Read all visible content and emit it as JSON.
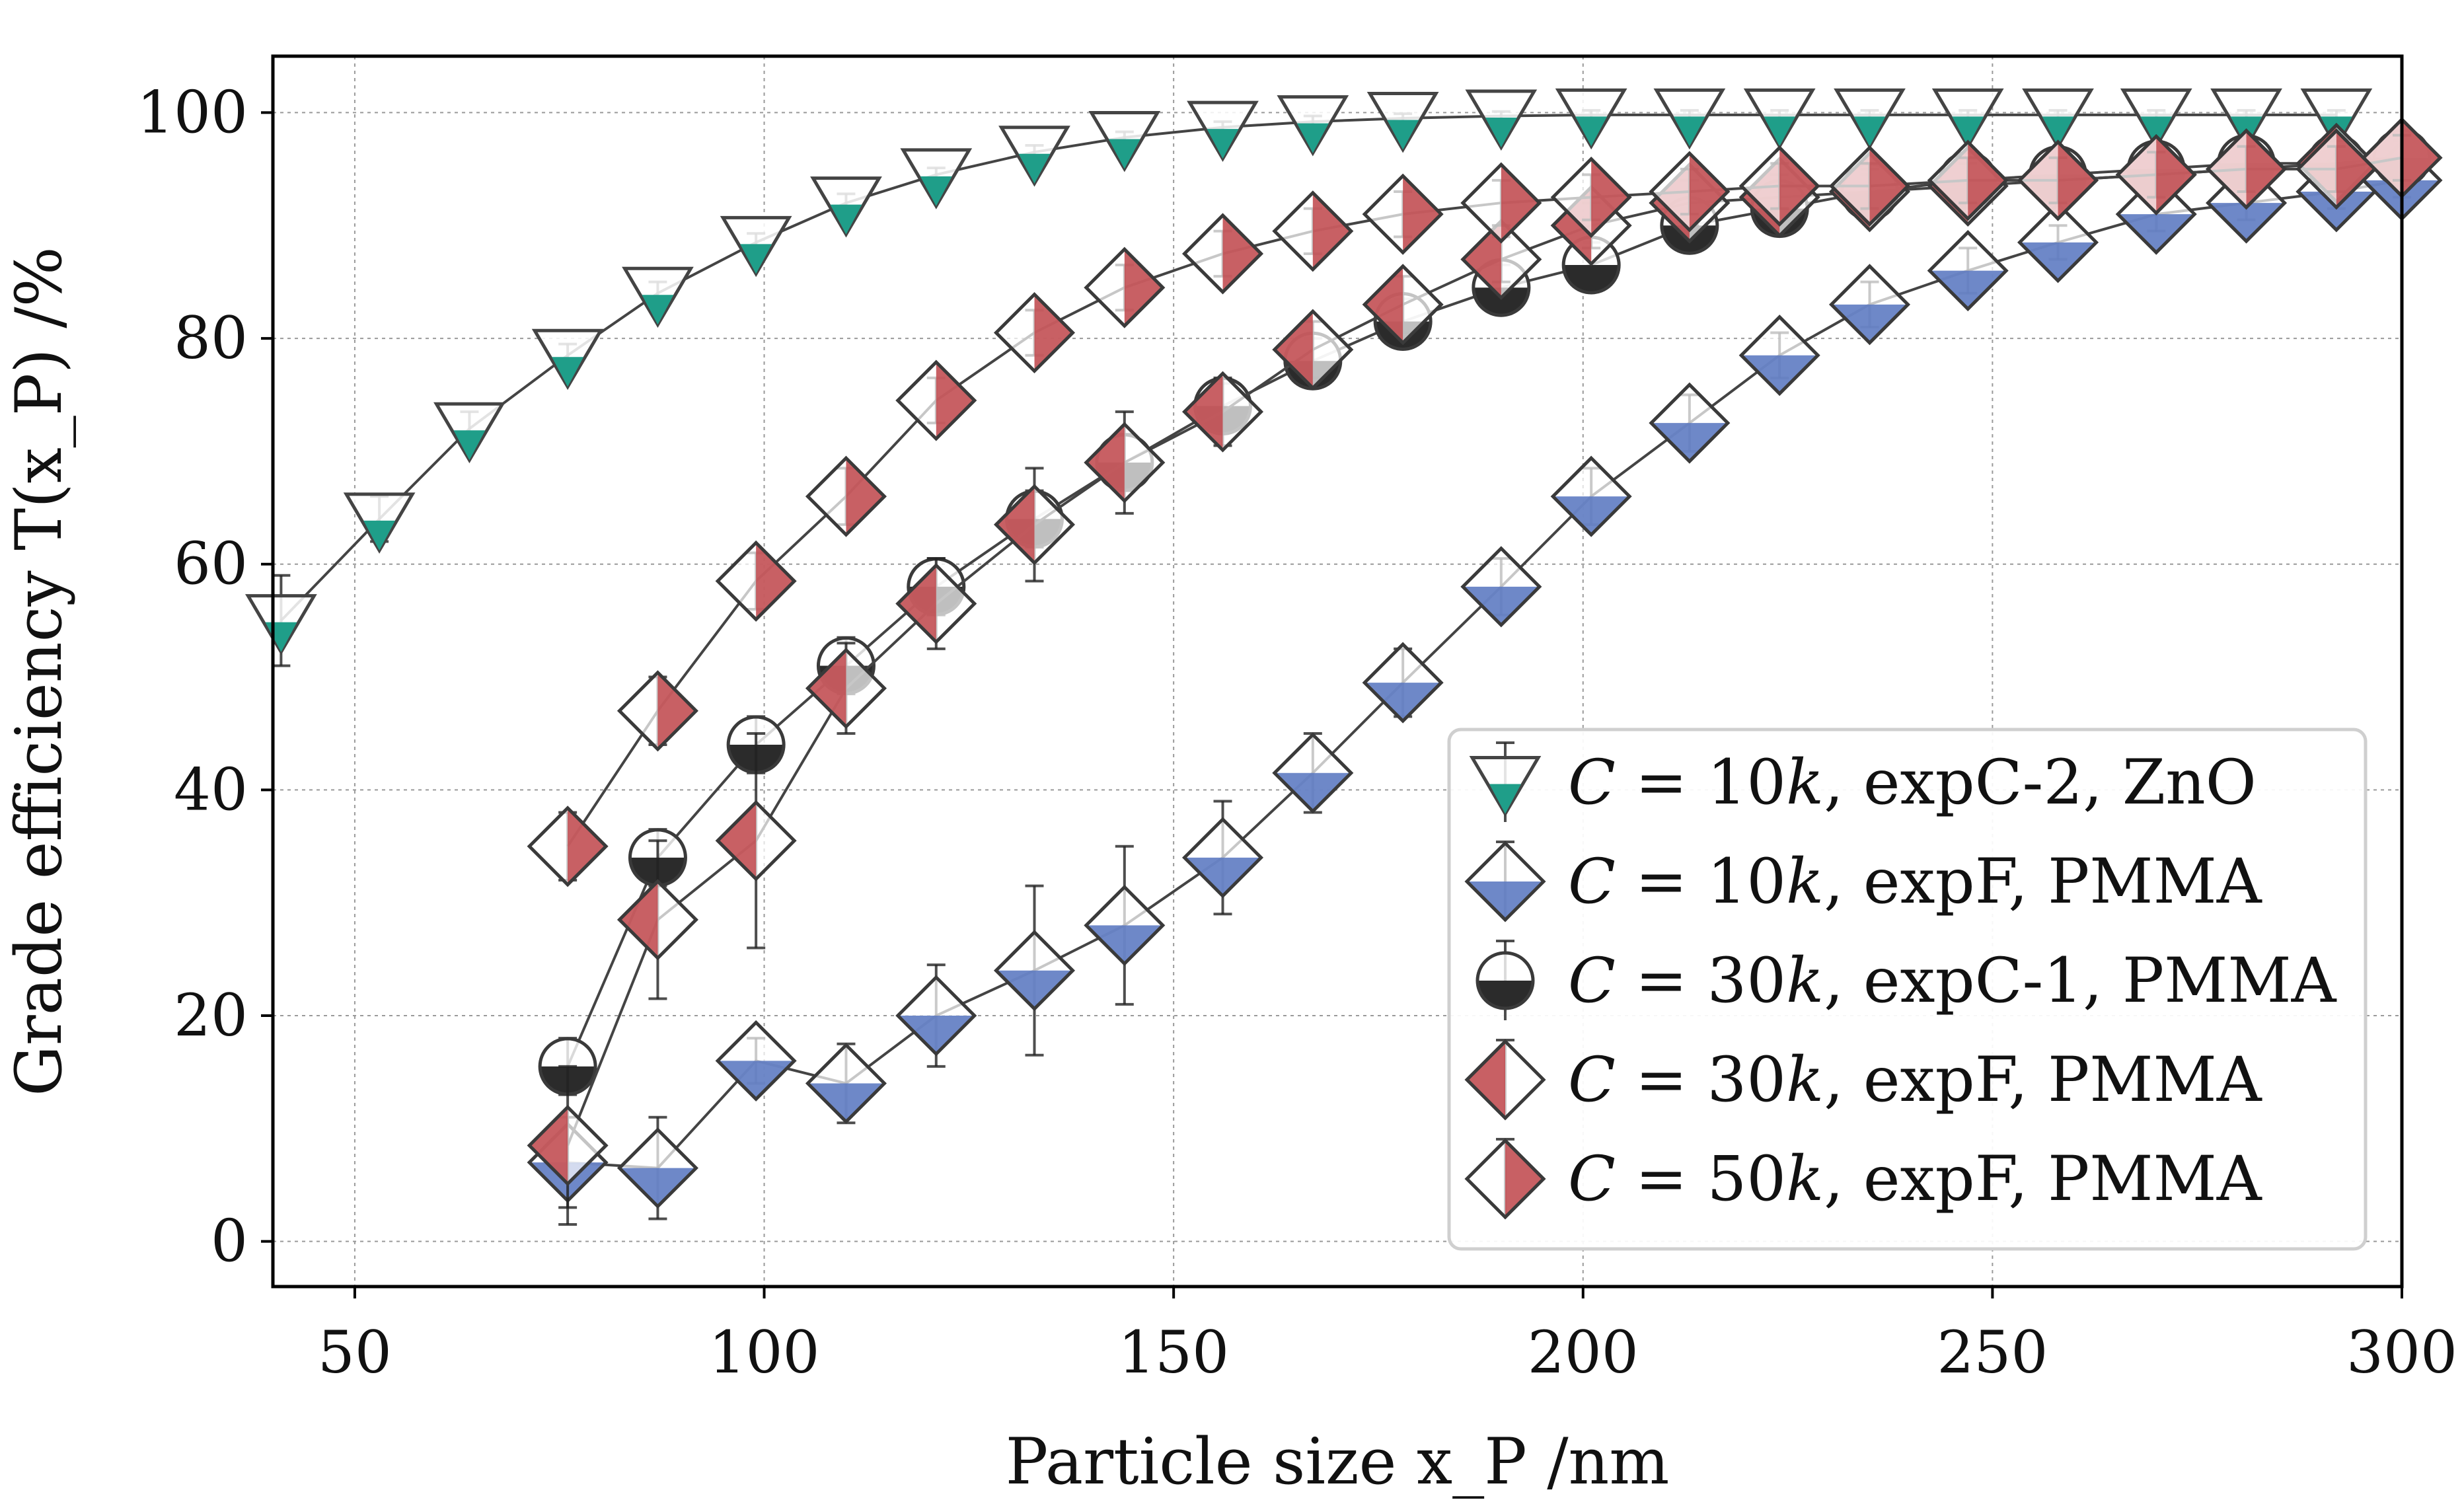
{
  "chart_data": {
    "type": "scatter",
    "xlabel": "Particle size x_P /nm",
    "ylabel": "Grade efficiency T(x_P) /%",
    "xlim": [
      40,
      300
    ],
    "ylim": [
      -4,
      105
    ],
    "xticks": [
      50,
      100,
      150,
      200,
      250,
      300
    ],
    "yticks": [
      0,
      20,
      40,
      60,
      80,
      100
    ],
    "grid": true,
    "legend_position": "lower-right",
    "series": [
      {
        "name": "C = 10k, expC-2, ZnO",
        "label_parts": [
          "C",
          " = ",
          "10",
          "k",
          ", expC-2, ZnO"
        ],
        "marker": "triangle-down",
        "color": "#1f9e89",
        "x": [
          41,
          53,
          64,
          76,
          87,
          99,
          110,
          121,
          133,
          144,
          156,
          167,
          178,
          190,
          201,
          213,
          224,
          235,
          247,
          258,
          270,
          281,
          292
        ],
        "y": [
          55,
          64,
          72,
          78.5,
          84,
          88.5,
          92,
          94.5,
          96.5,
          97.8,
          98.7,
          99.2,
          99.5,
          99.7,
          99.8,
          99.8,
          99.8,
          99.8,
          99.8,
          99.8,
          99.8,
          99.8,
          99.8
        ],
        "err": [
          4,
          2,
          1.5,
          1,
          1,
          0.8,
          0.8,
          0.6,
          0.6,
          0.5,
          0.5,
          0.5,
          0.4,
          0.4,
          0.4,
          0.4,
          0.4,
          0.4,
          0.4,
          0.4,
          0.4,
          0.4,
          0.4
        ]
      },
      {
        "name": "C = 10k, expF, PMMA",
        "label_parts": [
          "C",
          " = ",
          "10",
          "k",
          ", expF, PMMA"
        ],
        "marker": "diamond-bottom-half",
        "color": "#5a78c0",
        "x": [
          76,
          87,
          99,
          110,
          121,
          133,
          144,
          156,
          167,
          178,
          190,
          201,
          213,
          224,
          235,
          247,
          258,
          270,
          281,
          292,
          300
        ],
        "y": [
          7,
          6.5,
          16,
          14,
          20,
          24,
          28,
          34,
          41.5,
          49.5,
          58,
          66,
          72.5,
          78.5,
          83,
          86,
          88.5,
          91,
          92,
          93,
          94
        ],
        "err": [
          4,
          4.5,
          2,
          3.5,
          4.5,
          7.5,
          7,
          5,
          3.5,
          3,
          2.5,
          2.5,
          2.5,
          2,
          2,
          2,
          1.5,
          1.5,
          1.5,
          1.5,
          1.5
        ]
      },
      {
        "name": "C = 30k, expC-1, PMMA",
        "label_parts": [
          "C",
          " = ",
          "30",
          "k",
          ", expC-1, PMMA"
        ],
        "marker": "circle-bottom-half",
        "color": "#2b2b2b",
        "x": [
          76,
          87,
          99,
          110,
          121,
          133,
          144,
          156,
          167,
          178,
          190,
          201,
          213,
          224,
          235,
          247,
          258,
          270,
          281,
          292,
          300
        ],
        "y": [
          15.5,
          34,
          44,
          51,
          58,
          64,
          69,
          74,
          78,
          81.5,
          84.5,
          86.5,
          90,
          91.5,
          93,
          94,
          94.5,
          95,
          95.5,
          95.5,
          96
        ],
        "err": [
          2.5,
          2.5,
          2.5,
          2.5,
          2.5,
          2.5,
          2.5,
          2,
          2,
          2,
          2,
          2,
          1.5,
          1.5,
          1.5,
          1.5,
          1.5,
          1.5,
          1.5,
          1.5,
          1.5
        ]
      },
      {
        "name": "C = 30k, expF, PMMA",
        "label_parts": [
          "C",
          " = ",
          "30",
          "k",
          ", expF, PMMA"
        ],
        "marker": "diamond-left-half",
        "color": "#c04a4e",
        "x": [
          76,
          87,
          99,
          110,
          121,
          133,
          144,
          156,
          167,
          178,
          190,
          201,
          213,
          224,
          235,
          247,
          258,
          270,
          281,
          292,
          300
        ],
        "y": [
          8.5,
          28.5,
          35.5,
          49,
          56.5,
          63.5,
          69,
          73.5,
          79,
          83,
          87,
          90,
          92,
          92.5,
          93,
          93.5,
          94,
          94.5,
          95,
          95.5,
          96
        ],
        "err": [
          7,
          7,
          9.5,
          4,
          4,
          5,
          4.5,
          3,
          2.5,
          2.5,
          2,
          2,
          2,
          2,
          2,
          2,
          2,
          2,
          2,
          2,
          2
        ]
      },
      {
        "name": "C = 50k, expF, PMMA",
        "label_parts": [
          "C",
          " = ",
          "50",
          "k",
          ", expF, PMMA"
        ],
        "marker": "diamond-right-half",
        "color": "#c04a4e",
        "x": [
          76,
          87,
          99,
          110,
          121,
          133,
          144,
          156,
          167,
          178,
          190,
          201,
          213,
          224,
          235,
          247,
          258,
          270,
          281,
          292,
          300
        ],
        "y": [
          35,
          47,
          58.5,
          66,
          74.5,
          80.5,
          84.5,
          87.5,
          89.5,
          91,
          92,
          92.5,
          93,
          93.5,
          93.5,
          94,
          94,
          94.5,
          95,
          95,
          96
        ],
        "err": [
          3,
          3,
          2.5,
          2.5,
          2,
          2,
          2,
          2,
          2,
          2,
          2,
          2,
          2,
          2,
          2,
          2,
          2,
          2,
          2,
          2,
          2
        ]
      }
    ]
  }
}
